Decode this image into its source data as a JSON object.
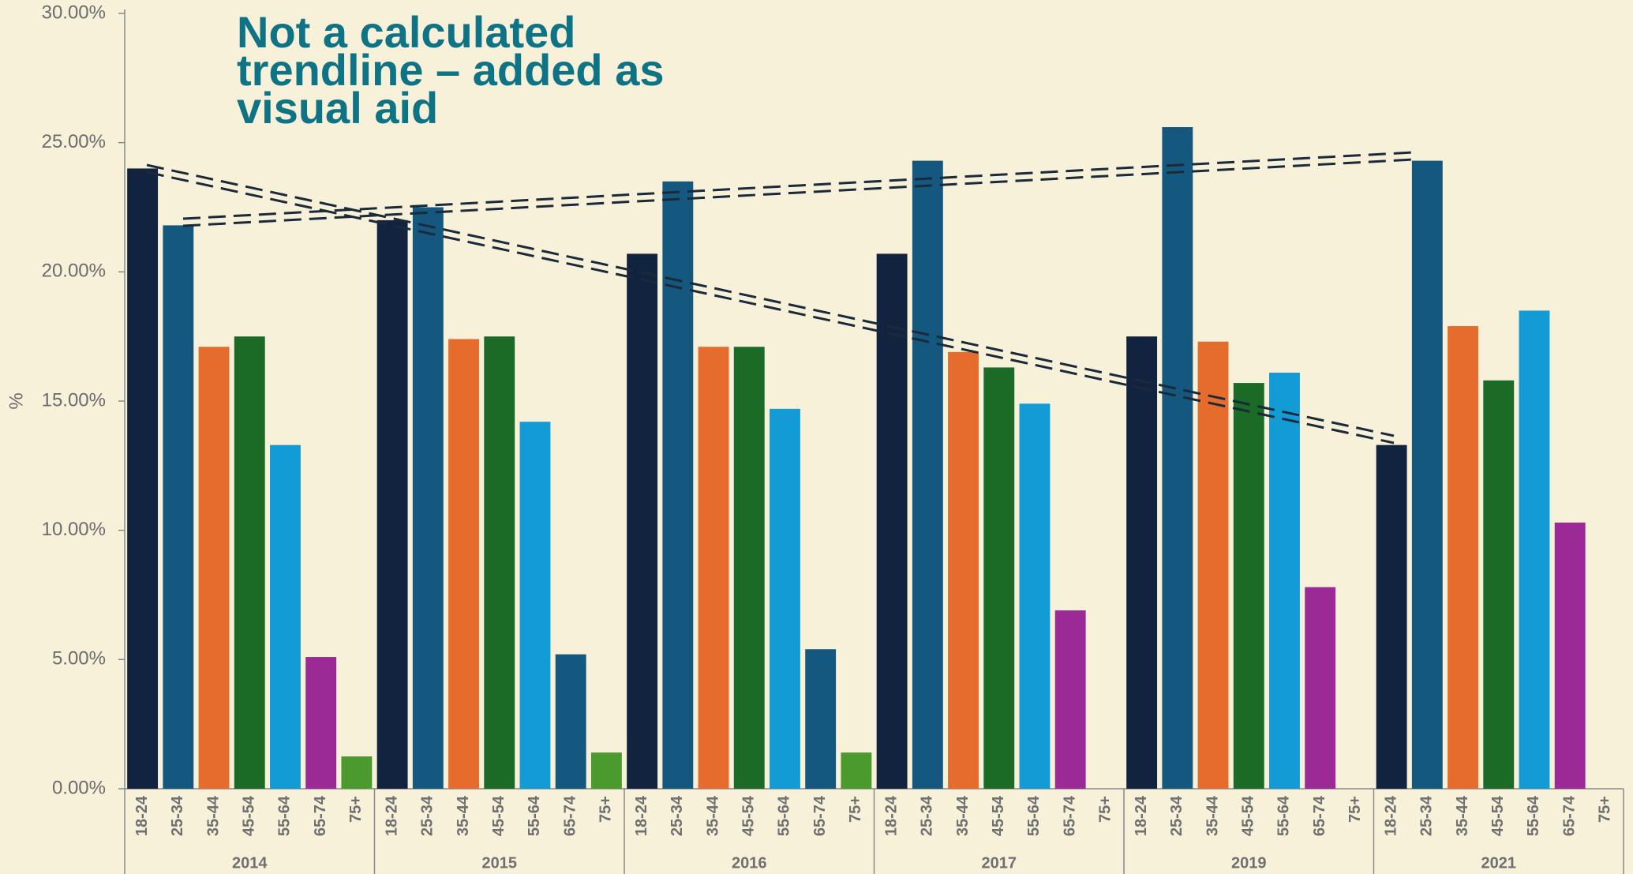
{
  "chart_data": {
    "type": "bar",
    "annotation": [
      "Not a calculated",
      "trendline – added as",
      "visual aid"
    ],
    "ylabel": "%",
    "categories": [
      "2014",
      "2015",
      "2016",
      "2017",
      "2019",
      "2021"
    ],
    "series": [
      {
        "name": "18-24",
        "color": "#12233f",
        "values": [
          24.0,
          22.0,
          20.7,
          20.7,
          17.5,
          13.3
        ]
      },
      {
        "name": "25-34",
        "color": "#15587f",
        "values": [
          21.8,
          22.5,
          23.5,
          24.3,
          25.6,
          24.3
        ]
      },
      {
        "name": "35-44",
        "color": "#e56c2c",
        "values": [
          17.1,
          17.4,
          17.1,
          16.9,
          17.3,
          17.9
        ]
      },
      {
        "name": "45-54",
        "color": "#1b6a25",
        "values": [
          17.5,
          17.5,
          17.1,
          16.3,
          15.7,
          15.8
        ]
      },
      {
        "name": "55-64",
        "color": "#139bd6",
        "values": [
          13.3,
          14.2,
          14.7,
          14.9,
          16.1,
          18.5
        ]
      },
      {
        "name": "65-74",
        "color": "#9b2a96",
        "colors": [
          "#9b2a96",
          "#15587f",
          "#15587f",
          "#9b2a96",
          "#9b2a96",
          "#9b2a96"
        ],
        "values": [
          5.1,
          5.2,
          5.4,
          6.9,
          7.8,
          10.3
        ]
      },
      {
        "name": "75+",
        "color": "#4a9a2e",
        "values": [
          1.25,
          1.4,
          1.4,
          null,
          null,
          null
        ]
      }
    ],
    "ylim": [
      0,
      30
    ],
    "yticks": [
      {
        "value": 0,
        "label": "0.00%"
      },
      {
        "value": 5,
        "label": "5.00%"
      },
      {
        "value": 10,
        "label": "10.00%"
      },
      {
        "value": 15,
        "label": "15.00%"
      },
      {
        "value": 20,
        "label": "20.00%"
      },
      {
        "value": 25,
        "label": "25.00%"
      },
      {
        "value": 30,
        "label": "30.00%"
      }
    ]
  }
}
